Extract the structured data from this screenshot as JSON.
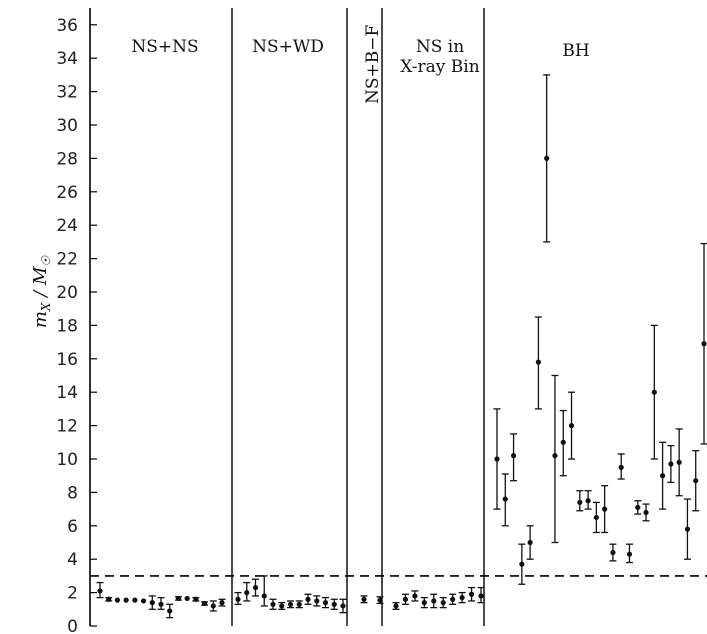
{
  "chart_data": {
    "type": "scatter",
    "ylabel_main": "m",
    "ylabel_sub": "X",
    "ylabel_sep": " / ",
    "ylabel_den": "M",
    "ylabel_sun": "☉",
    "ylim": [
      0,
      37
    ],
    "yticks": [
      0,
      2,
      4,
      6,
      8,
      10,
      12,
      14,
      16,
      18,
      20,
      22,
      24,
      26,
      28,
      30,
      32,
      34,
      36
    ],
    "grid": false,
    "threshold": 3,
    "sections": [
      {
        "lines": [
          "NS+NS"
        ],
        "vertical": false
      },
      {
        "lines": [
          "NS+WD"
        ],
        "vertical": false
      },
      {
        "lines": [
          "NS+B−F"
        ],
        "vertical": true
      },
      {
        "lines": [
          "NS in",
          "X-ray Bin"
        ],
        "vertical": false
      },
      {
        "lines": [
          "BH"
        ],
        "vertical": false
      }
    ],
    "series": [
      {
        "section": 0,
        "points": [
          {
            "y": 2.1,
            "lo": 1.7,
            "hi": 2.6
          },
          {
            "y": 1.6,
            "lo": 1.5,
            "hi": 1.7
          },
          {
            "y": 1.55,
            "lo": 1.5,
            "hi": 1.6
          },
          {
            "y": 1.55,
            "lo": 1.5,
            "hi": 1.6
          },
          {
            "y": 1.55,
            "lo": 1.5,
            "hi": 1.6
          },
          {
            "y": 1.5,
            "lo": 1.45,
            "hi": 1.55
          },
          {
            "y": 1.4,
            "lo": 1.0,
            "hi": 1.8
          },
          {
            "y": 1.3,
            "lo": 1.0,
            "hi": 1.7
          },
          {
            "y": 0.9,
            "lo": 0.5,
            "hi": 1.3
          },
          {
            "y": 1.65,
            "lo": 1.55,
            "hi": 1.75
          },
          {
            "y": 1.65,
            "lo": 1.6,
            "hi": 1.7
          },
          {
            "y": 1.6,
            "lo": 1.5,
            "hi": 1.7
          },
          {
            "y": 1.35,
            "lo": 1.25,
            "hi": 1.45
          },
          {
            "y": 1.2,
            "lo": 0.9,
            "hi": 1.5
          },
          {
            "y": 1.4,
            "lo": 1.2,
            "hi": 1.6
          }
        ]
      },
      {
        "section": 1,
        "points": [
          {
            "y": 1.6,
            "lo": 1.3,
            "hi": 2.0
          },
          {
            "y": 2.0,
            "lo": 1.5,
            "hi": 2.6
          },
          {
            "y": 2.3,
            "lo": 1.8,
            "hi": 2.8
          },
          {
            "y": 1.8,
            "lo": 1.2,
            "hi": 3.0
          },
          {
            "y": 1.3,
            "lo": 1.0,
            "hi": 1.6
          },
          {
            "y": 1.2,
            "lo": 1.0,
            "hi": 1.4
          },
          {
            "y": 1.3,
            "lo": 1.1,
            "hi": 1.5
          },
          {
            "y": 1.3,
            "lo": 1.1,
            "hi": 1.5
          },
          {
            "y": 1.6,
            "lo": 1.3,
            "hi": 1.9
          },
          {
            "y": 1.5,
            "lo": 1.2,
            "hi": 1.8
          },
          {
            "y": 1.4,
            "lo": 1.1,
            "hi": 1.7
          },
          {
            "y": 1.3,
            "lo": 1.0,
            "hi": 1.6
          },
          {
            "y": 1.2,
            "lo": 0.8,
            "hi": 1.6
          }
        ]
      },
      {
        "section": 2,
        "points": [
          {
            "y": 1.6,
            "lo": 1.4,
            "hi": 1.8
          },
          {
            "y": 1.55,
            "lo": 1.35,
            "hi": 1.75
          }
        ]
      },
      {
        "section": 3,
        "points": [
          {
            "y": 1.2,
            "lo": 1.0,
            "hi": 1.4
          },
          {
            "y": 1.6,
            "lo": 1.3,
            "hi": 1.9
          },
          {
            "y": 1.8,
            "lo": 1.5,
            "hi": 2.1
          },
          {
            "y": 1.4,
            "lo": 1.1,
            "hi": 1.7
          },
          {
            "y": 1.5,
            "lo": 1.1,
            "hi": 1.9
          },
          {
            "y": 1.4,
            "lo": 1.1,
            "hi": 1.7
          },
          {
            "y": 1.6,
            "lo": 1.3,
            "hi": 1.9
          },
          {
            "y": 1.7,
            "lo": 1.4,
            "hi": 2.0
          },
          {
            "y": 1.9,
            "lo": 1.5,
            "hi": 2.3
          },
          {
            "y": 1.8,
            "lo": 1.4,
            "hi": 2.3
          }
        ]
      },
      {
        "section": 4,
        "points": [
          {
            "y": 10.0,
            "lo": 7.0,
            "hi": 13.0
          },
          {
            "y": 7.6,
            "lo": 6.0,
            "hi": 9.1
          },
          {
            "y": 10.2,
            "lo": 8.7,
            "hi": 11.5
          },
          {
            "y": 3.7,
            "lo": 2.5,
            "hi": 4.9
          },
          {
            "y": 5.0,
            "lo": 4.0,
            "hi": 6.0
          },
          {
            "y": 15.8,
            "lo": 13.0,
            "hi": 18.5
          },
          {
            "y": 28.0,
            "lo": 23.0,
            "hi": 33.0
          },
          {
            "y": 10.2,
            "lo": 5.0,
            "hi": 15.0
          },
          {
            "y": 11.0,
            "lo": 9.0,
            "hi": 12.9
          },
          {
            "y": 12.0,
            "lo": 10.0,
            "hi": 14.0
          },
          {
            "y": 7.4,
            "lo": 6.9,
            "hi": 8.1
          },
          {
            "y": 7.5,
            "lo": 7.0,
            "hi": 8.1
          },
          {
            "y": 6.5,
            "lo": 5.6,
            "hi": 7.4
          },
          {
            "y": 7.0,
            "lo": 5.6,
            "hi": 8.4
          },
          {
            "y": 4.4,
            "lo": 3.9,
            "hi": 4.9
          },
          {
            "y": 9.5,
            "lo": 8.8,
            "hi": 10.3
          },
          {
            "y": 4.3,
            "lo": 3.8,
            "hi": 4.9
          },
          {
            "y": 7.1,
            "lo": 6.7,
            "hi": 7.5
          },
          {
            "y": 6.8,
            "lo": 6.3,
            "hi": 7.3
          },
          {
            "y": 14.0,
            "lo": 10.0,
            "hi": 18.0
          },
          {
            "y": 9.0,
            "lo": 7.0,
            "hi": 11.0
          },
          {
            "y": 9.7,
            "lo": 8.6,
            "hi": 10.8
          },
          {
            "y": 9.8,
            "lo": 7.8,
            "hi": 11.8
          },
          {
            "y": 5.8,
            "lo": 4.0,
            "hi": 7.6
          },
          {
            "y": 8.7,
            "lo": 6.9,
            "hi": 10.5
          },
          {
            "y": 16.9,
            "lo": 10.9,
            "hi": 22.9
          }
        ]
      }
    ]
  }
}
